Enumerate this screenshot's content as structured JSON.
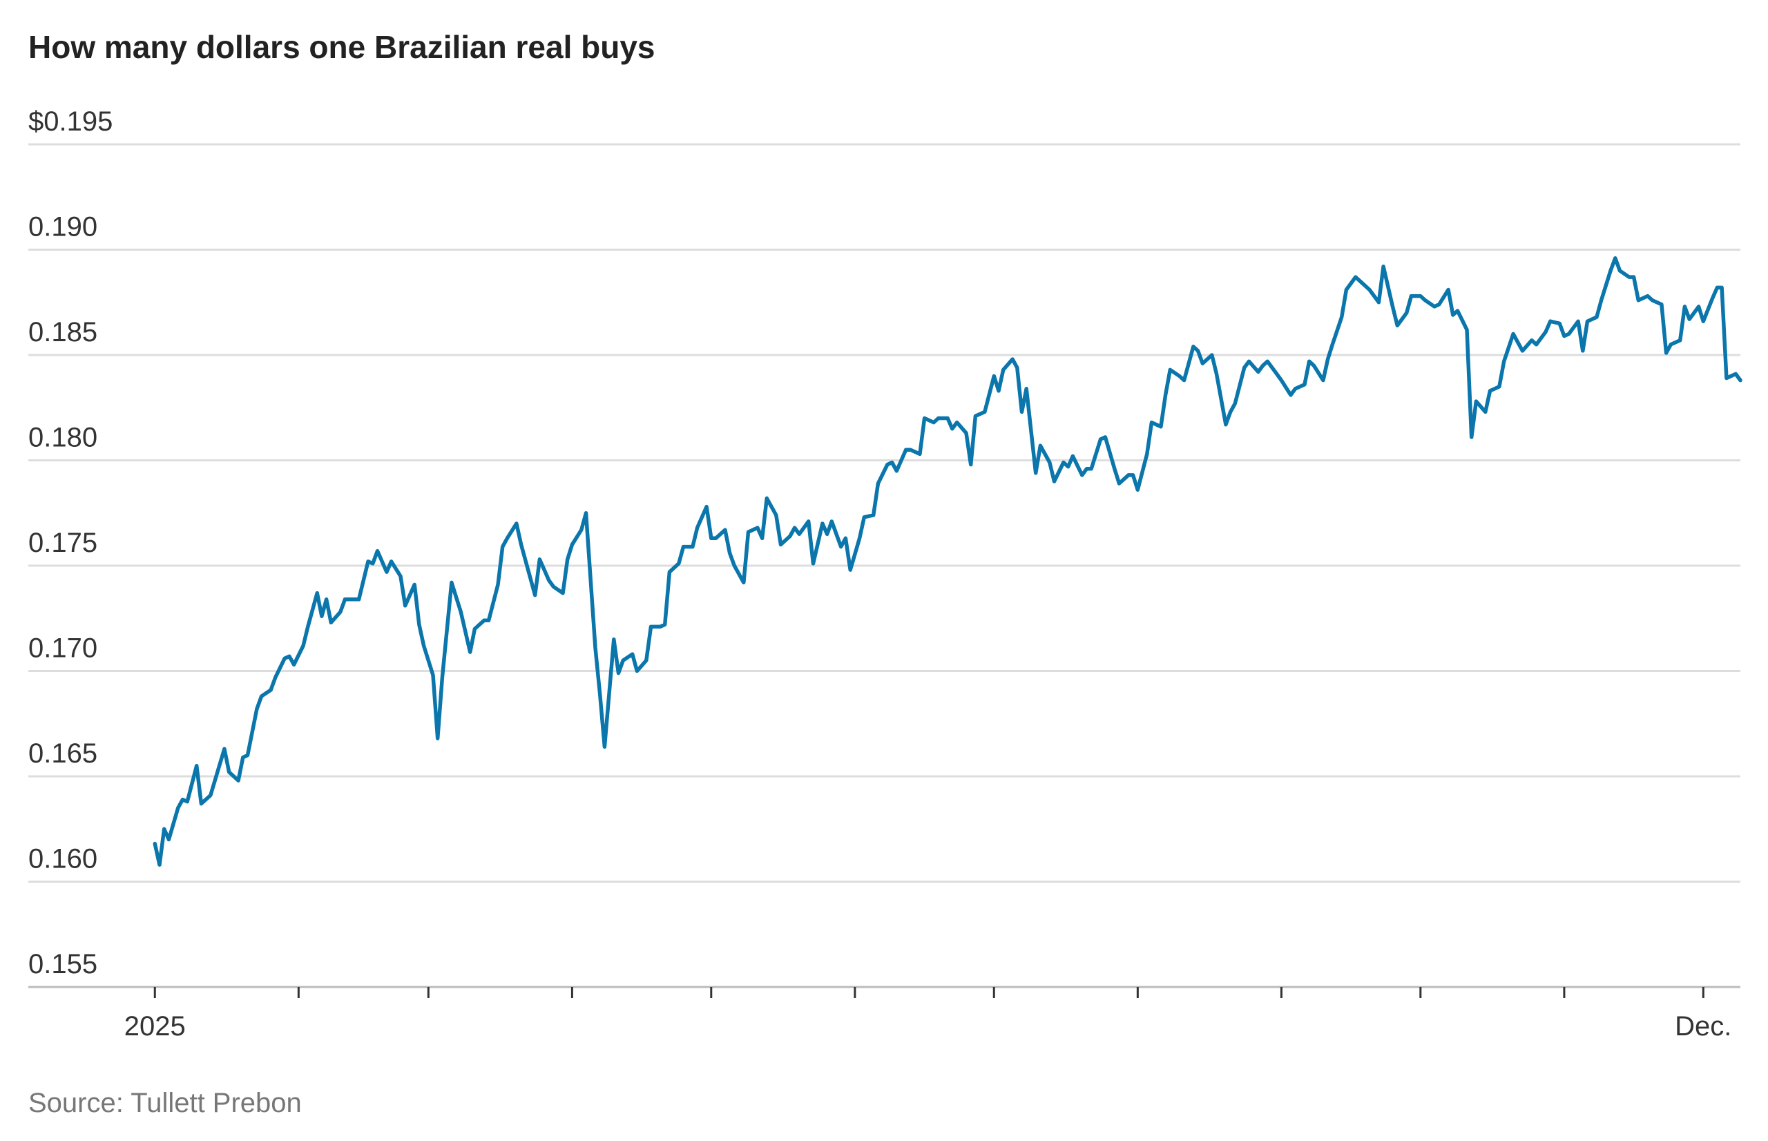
{
  "chart_data": {
    "type": "line",
    "title": "How many dollars one Brazilian real buys",
    "source": "Source: Tullett Prebon",
    "color": "#0a76ab",
    "grid": true,
    "ylim": [
      0.155,
      0.195
    ],
    "yticks": [
      {
        "value": 0.155,
        "label": "0.155"
      },
      {
        "value": 0.16,
        "label": "0.160"
      },
      {
        "value": 0.165,
        "label": "0.165"
      },
      {
        "value": 0.17,
        "label": "0.170"
      },
      {
        "value": 0.175,
        "label": "0.175"
      },
      {
        "value": 0.18,
        "label": "0.180"
      },
      {
        "value": 0.185,
        "label": "0.185"
      },
      {
        "value": 0.19,
        "label": "0.190"
      },
      {
        "value": 0.195,
        "label": "$0.195"
      }
    ],
    "xlim": [
      -27.3,
      342
    ],
    "xticks": [
      {
        "value": 0,
        "label": "2025"
      },
      {
        "value": 334,
        "label": "Dec."
      }
    ],
    "xticks_minor": [
      31,
      59,
      90,
      120,
      151,
      181,
      212,
      243,
      273,
      304
    ],
    "x": [
      0,
      1,
      2,
      3,
      5,
      6,
      7,
      9,
      10,
      12,
      15,
      16,
      18,
      19,
      20,
      22,
      23,
      25,
      26,
      28,
      29,
      30,
      32,
      33,
      35,
      36,
      37,
      38,
      40,
      41,
      44,
      46,
      47,
      48,
      50,
      51,
      53,
      54,
      56,
      57,
      58,
      60,
      61,
      62,
      64,
      65,
      66,
      68,
      69,
      71,
      72,
      74,
      75,
      76,
      78,
      79,
      81,
      82,
      83,
      85,
      86,
      88,
      89,
      90,
      92,
      93,
      95,
      96,
      97,
      99,
      100,
      101,
      103,
      104,
      106,
      107,
      109,
      110,
      111,
      113,
      114,
      116,
      117,
      119,
      120,
      121,
      123,
      124,
      125,
      127,
      128,
      130,
      131,
      132,
      134,
      135,
      137,
      138,
      139,
      141,
      142,
      144,
      145,
      146,
      148,
      149,
      150,
      152,
      153,
      155,
      156,
      158,
      159,
      160,
      162,
      163,
      165,
      166,
      168,
      169,
      171,
      172,
      173,
      175,
      176,
      177,
      179,
      181,
      182,
      183,
      185,
      186,
      187,
      188,
      190,
      191,
      193,
      194,
      196,
      197,
      198,
      200,
      201,
      202,
      204,
      205,
      207,
      208,
      210,
      211,
      212,
      214,
      215,
      217,
      218,
      219,
      221,
      222,
      224,
      225,
      226,
      228,
      229,
      231,
      232,
      233,
      235,
      236,
      238,
      239,
      240,
      242,
      243,
      245,
      246,
      248,
      249,
      250,
      252,
      253,
      254,
      256,
      257,
      259,
      260,
      262,
      263,
      264,
      265,
      267,
      268,
      270,
      271,
      273,
      274,
      276,
      277,
      279,
      280,
      281,
      283,
      284,
      285,
      287,
      288,
      290,
      291,
      293,
      294,
      295,
      297,
      298,
      300,
      301,
      303,
      304,
      305,
      307,
      308,
      309,
      311,
      312,
      314,
      315,
      316,
      318,
      319,
      320,
      322,
      323,
      325,
      326,
      327,
      329,
      330,
      331,
      333,
      334,
      336,
      337,
      338,
      339,
      341,
      342
    ],
    "values": [
      0.1618,
      0.1608,
      0.1625,
      0.162,
      0.1635,
      0.1639,
      0.1638,
      0.1655,
      0.1637,
      0.1641,
      0.1663,
      0.1652,
      0.1648,
      0.1659,
      0.166,
      0.1682,
      0.1688,
      0.1691,
      0.1697,
      0.1706,
      0.1707,
      0.1703,
      0.1712,
      0.1721,
      0.1737,
      0.1726,
      0.1734,
      0.1723,
      0.1728,
      0.1734,
      0.1734,
      0.1752,
      0.1751,
      0.1757,
      0.1747,
      0.1752,
      0.1745,
      0.1731,
      0.1741,
      0.1722,
      0.1712,
      0.1698,
      0.1668,
      0.1697,
      0.1742,
      0.1735,
      0.1728,
      0.1709,
      0.172,
      0.1724,
      0.1724,
      0.1741,
      0.1759,
      0.1763,
      0.177,
      0.176,
      0.1744,
      0.1736,
      0.1753,
      0.1743,
      0.174,
      0.1737,
      0.1753,
      0.176,
      0.1767,
      0.1775,
      0.1711,
      0.1689,
      0.1664,
      0.1715,
      0.1699,
      0.1705,
      0.1708,
      0.17,
      0.1705,
      0.1721,
      0.1721,
      0.1722,
      0.1747,
      0.1751,
      0.1759,
      0.1759,
      0.1768,
      0.1778,
      0.1763,
      0.1763,
      0.1767,
      0.1756,
      0.175,
      0.1742,
      0.1766,
      0.1768,
      0.1763,
      0.1782,
      0.1774,
      0.176,
      0.1764,
      0.1768,
      0.1765,
      0.1771,
      0.1751,
      0.177,
      0.1765,
      0.1771,
      0.1759,
      0.1763,
      0.1748,
      0.1763,
      0.1773,
      0.1774,
      0.1789,
      0.1798,
      0.1799,
      0.1795,
      0.1805,
      0.1805,
      0.1803,
      0.182,
      0.1818,
      0.182,
      0.182,
      0.1815,
      0.1818,
      0.1813,
      0.1798,
      0.1821,
      0.1823,
      0.184,
      0.1833,
      0.1843,
      0.1848,
      0.1844,
      0.1823,
      0.1834,
      0.1794,
      0.1807,
      0.1799,
      0.179,
      0.1799,
      0.1797,
      0.1802,
      0.1793,
      0.1796,
      0.1796,
      0.181,
      0.1811,
      0.1796,
      0.1789,
      0.1793,
      0.1793,
      0.1786,
      0.1803,
      0.1818,
      0.1816,
      0.1831,
      0.1843,
      0.184,
      0.1838,
      0.1854,
      0.1852,
      0.1846,
      0.185,
      0.1841,
      0.1817,
      0.1823,
      0.1827,
      0.1844,
      0.1847,
      0.1842,
      0.1845,
      0.1847,
      0.1841,
      0.1838,
      0.1831,
      0.1834,
      0.1836,
      0.1847,
      0.1845,
      0.1838,
      0.1848,
      0.1855,
      0.1868,
      0.1881,
      0.1887,
      0.1885,
      0.1881,
      0.1878,
      0.1875,
      0.1892,
      0.1873,
      0.1864,
      0.187,
      0.1878,
      0.1878,
      0.1876,
      0.1873,
      0.1874,
      0.1881,
      0.1869,
      0.1871,
      0.1862,
      0.1811,
      0.1828,
      0.1823,
      0.1833,
      0.1835,
      0.1847,
      0.186,
      0.1856,
      0.1852,
      0.1857,
      0.1855,
      0.1861,
      0.1866,
      0.1865,
      0.1859,
      0.186,
      0.1866,
      0.1852,
      0.1866,
      0.1868,
      0.1876,
      0.189,
      0.1896,
      0.189,
      0.1887,
      0.1887,
      0.1876,
      0.1878,
      0.1876,
      0.1874,
      0.1851,
      0.1855,
      0.1857,
      0.1873,
      0.1867,
      0.1873,
      0.1866,
      0.1877,
      0.1882,
      0.1882,
      0.1839,
      0.1841,
      0.1838
    ]
  }
}
